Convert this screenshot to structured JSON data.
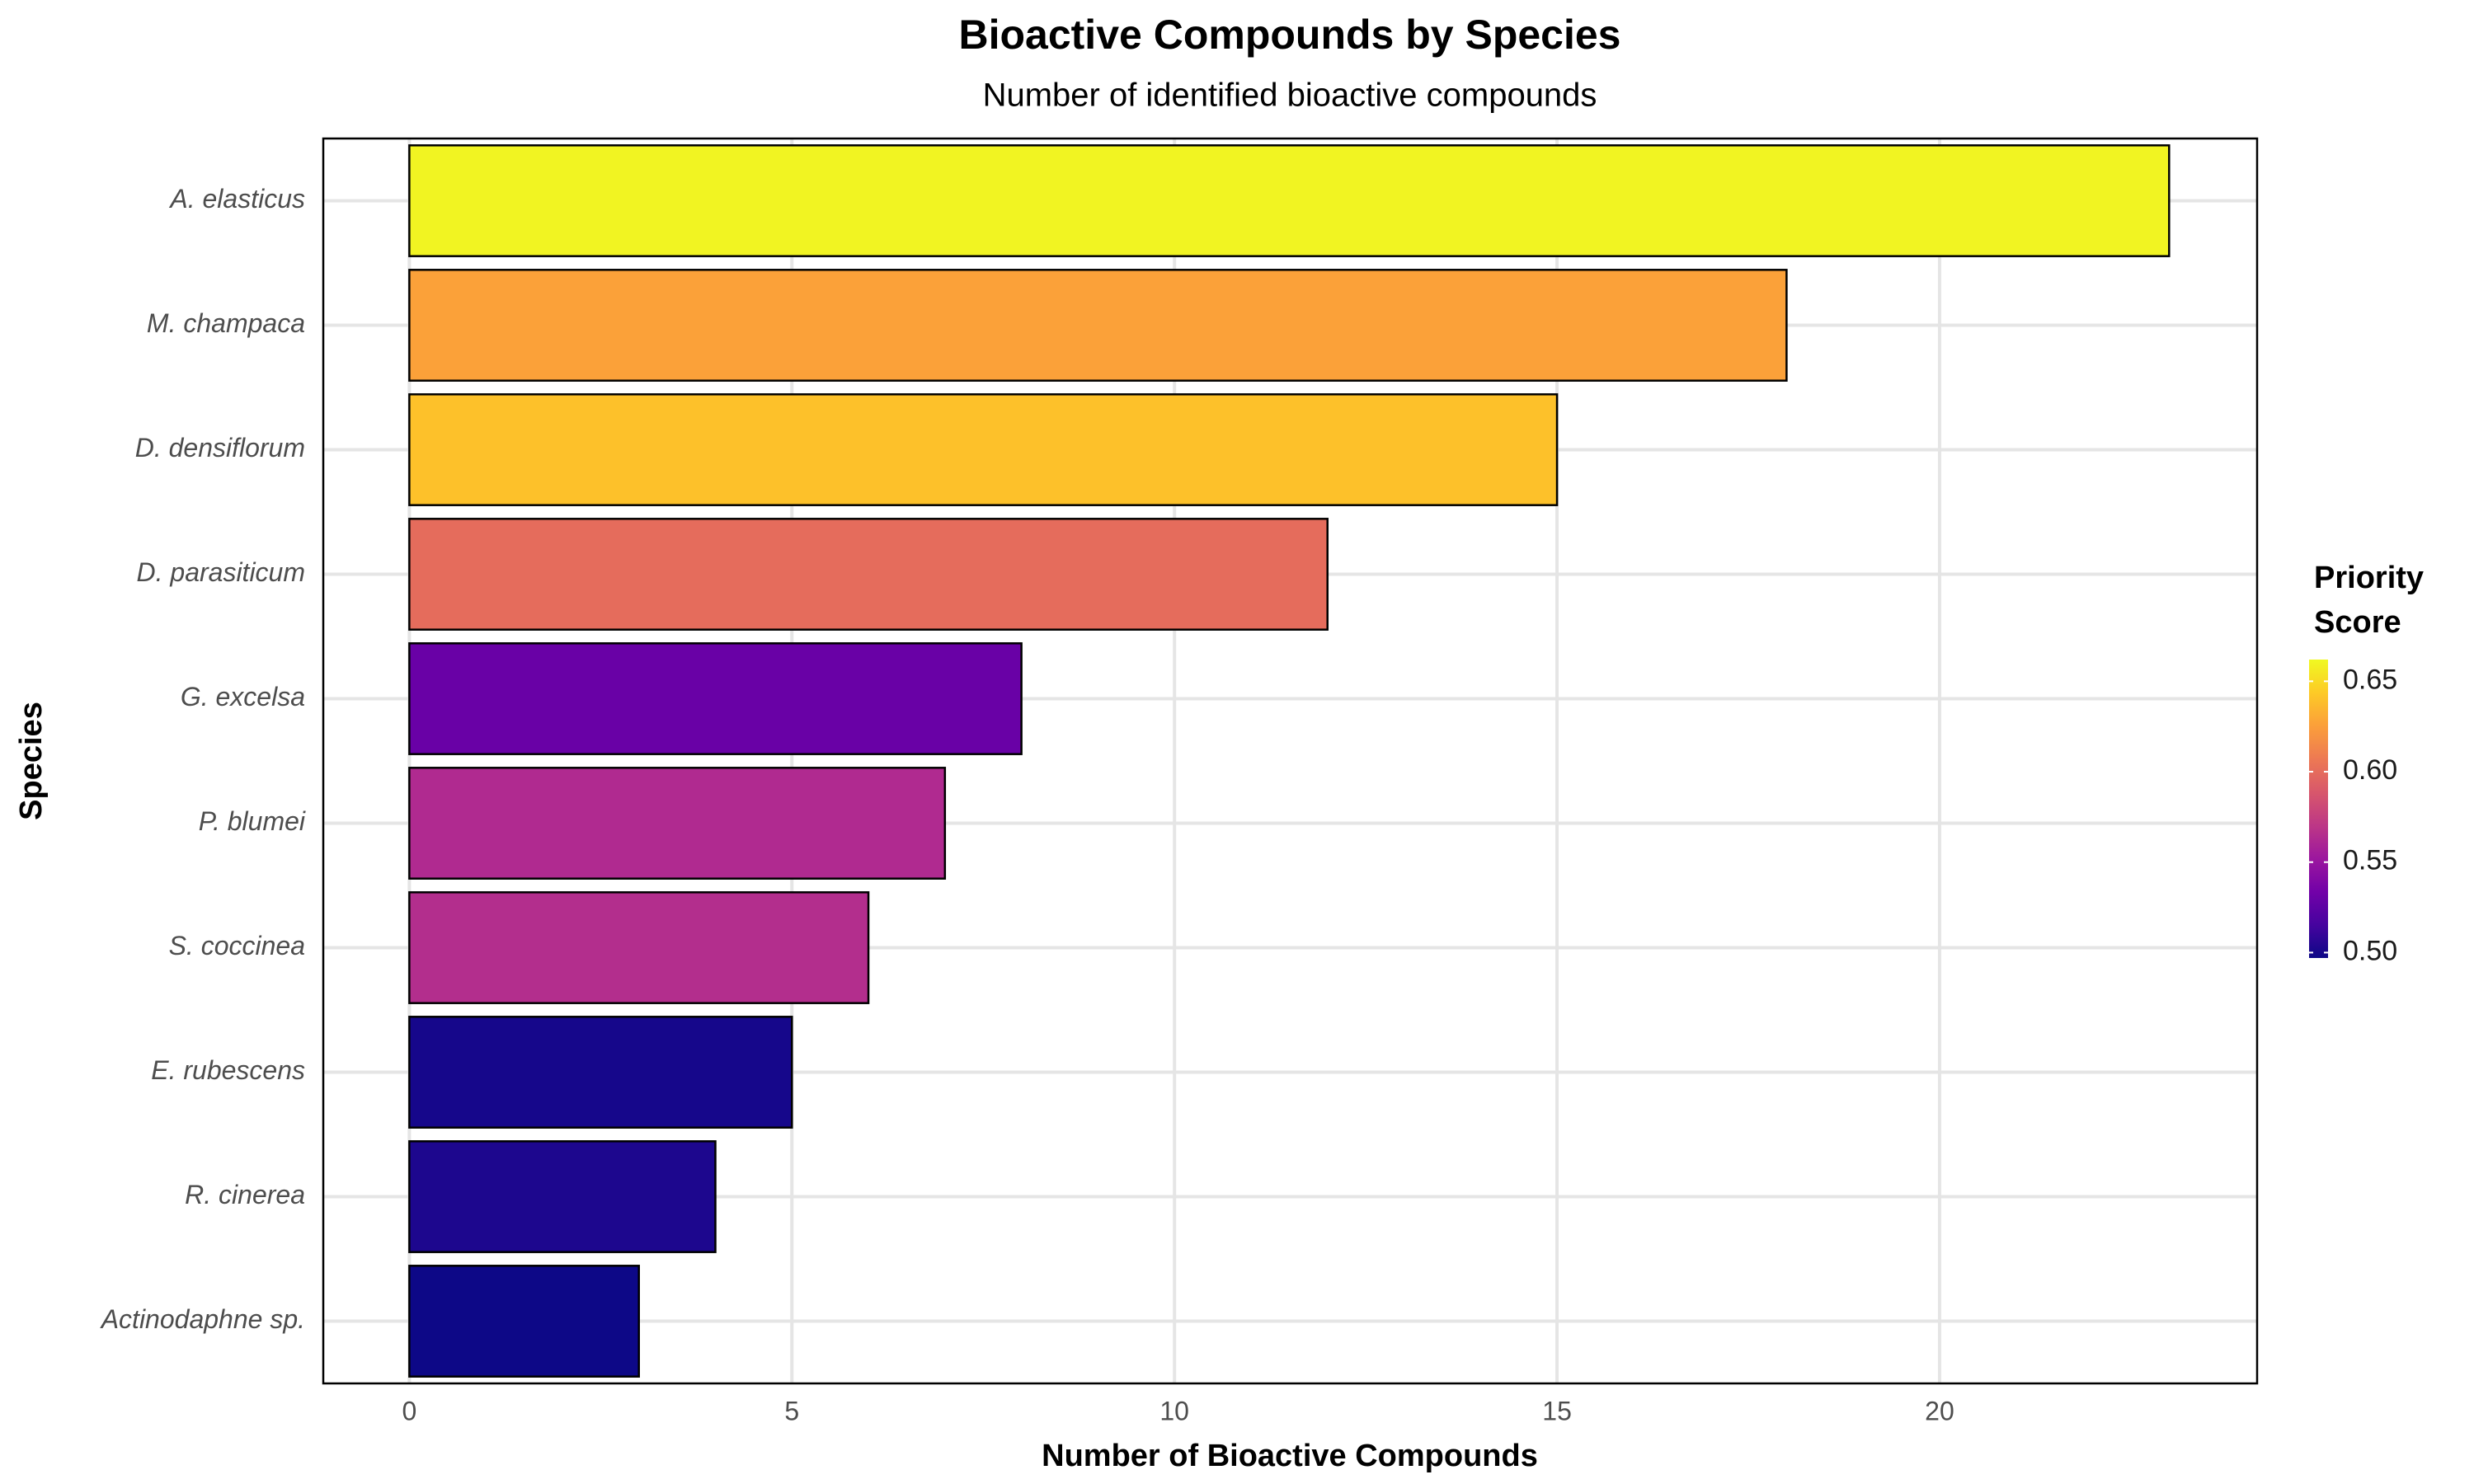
{
  "chart_data": {
    "type": "bar",
    "orientation": "horizontal",
    "title": "Bioactive Compounds by Species",
    "subtitle": "Number of identified bioactive compounds",
    "x_label": "Number of Bioactive Compounds",
    "y_label": "Species",
    "categories": [
      "A. elasticus",
      "M. champaca",
      "D. densiflorum",
      "D. parasiticum",
      "G. excelsa",
      "P. blumei",
      "S. coccinea",
      "E. rubescens",
      "R. cinerea",
      "Actinodaphne sp."
    ],
    "values": [
      23,
      18,
      15,
      12,
      8,
      7,
      6,
      5,
      4,
      3
    ],
    "color_values": [
      0.66,
      0.626,
      0.64,
      0.6,
      0.53,
      0.563,
      0.565,
      0.5,
      0.502,
      0.497
    ],
    "xlim": [
      -1.125,
      24.15
    ],
    "xticks": [
      0,
      5,
      10,
      15,
      20
    ],
    "grid": true,
    "legend": {
      "title": [
        "Priority",
        "Score"
      ],
      "position": "right",
      "colorscale": [
        "#0d0887",
        "#46039f",
        "#7201a8",
        "#9c179e",
        "#bd3786",
        "#d8576b",
        "#ed7953",
        "#fb9f3a",
        "#fdca26",
        "#f0f921"
      ],
      "clim": [
        0.497,
        0.662
      ],
      "ticks": [
        {
          "value": 0.5,
          "label": "0.50"
        },
        {
          "value": 0.55,
          "label": "0.55"
        },
        {
          "value": 0.6,
          "label": "0.60"
        },
        {
          "value": 0.65,
          "label": "0.65"
        }
      ]
    }
  }
}
